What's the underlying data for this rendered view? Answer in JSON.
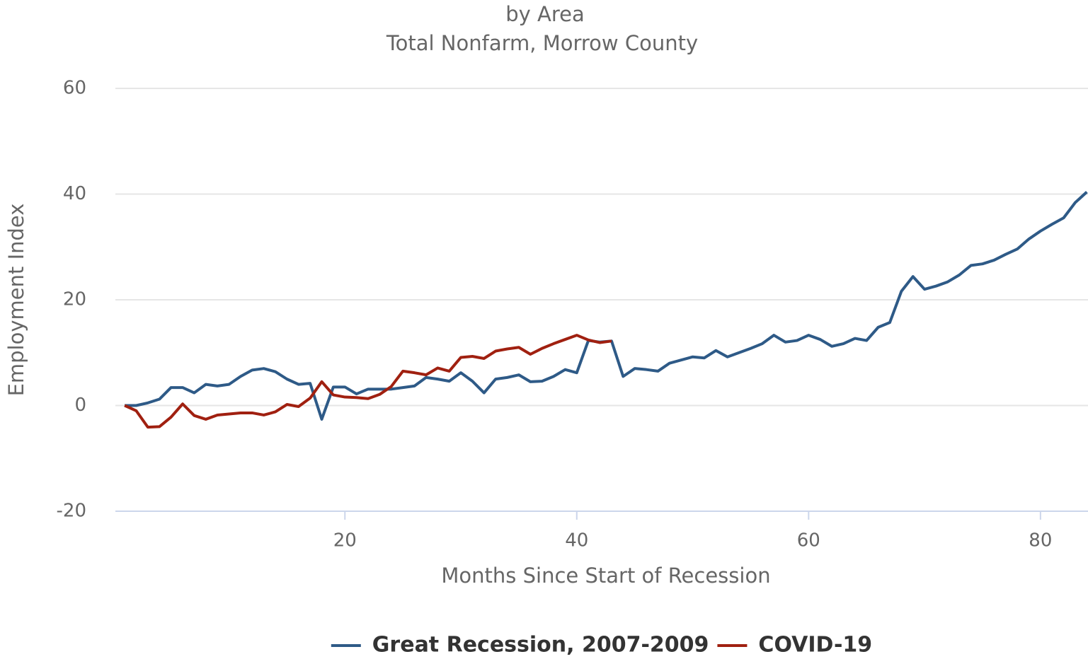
{
  "chart_data": {
    "type": "line",
    "title": "by Area",
    "subtitle": "Total Nonfarm, Morrow County",
    "x_label": "Months Since Start of Recession",
    "y_label": "Employment Index",
    "x": [
      1,
      2,
      3,
      4,
      5,
      6,
      7,
      8,
      9,
      10,
      11,
      12,
      13,
      14,
      15,
      16,
      17,
      18,
      19,
      20,
      21,
      22,
      23,
      24,
      25,
      26,
      27,
      28,
      29,
      30,
      31,
      32,
      33,
      34,
      35,
      36,
      37,
      38,
      39,
      40,
      41,
      42,
      43,
      44,
      45,
      46,
      47,
      48,
      49,
      50,
      51,
      52,
      53,
      54,
      55,
      56,
      57,
      58,
      59,
      60,
      61,
      62,
      63,
      64,
      65,
      66,
      67,
      68,
      69,
      70,
      71,
      72,
      73,
      74,
      75,
      76,
      77,
      78,
      79,
      80,
      81,
      82,
      83,
      84
    ],
    "series": [
      {
        "name": "Great Recession, 2007-2009",
        "color": "#2e5a87",
        "values": [
          0,
          0,
          0.5,
          1.2,
          3.4,
          3.4,
          2.4,
          4,
          3.7,
          4,
          5.5,
          6.7,
          7,
          6.4,
          5,
          4,
          4.2,
          -2.6,
          3.5,
          3.5,
          2.2,
          3.1,
          3.1,
          3.1,
          3.4,
          3.7,
          5.3,
          5,
          4.6,
          6.2,
          4.6,
          2.4,
          5,
          5.3,
          5.8,
          4.5,
          4.6,
          5.5,
          6.8,
          6.2,
          12.3,
          12,
          12.2,
          5.5,
          7,
          6.8,
          6.5,
          8,
          8.6,
          9.2,
          9,
          10.4,
          9.2,
          10,
          10.8,
          11.7,
          13.3,
          12,
          12.3,
          13.3,
          12.5,
          11.2,
          11.7,
          12.7,
          12.3,
          14.8,
          15.7,
          21.6,
          24.4,
          22,
          22.6,
          23.4,
          24.7,
          26.5,
          26.8,
          27.5,
          28.6,
          29.6,
          31.5,
          33,
          34.3,
          35.5,
          38.4,
          40.4
        ]
      },
      {
        "name": "COVID-19",
        "color": "#a02010",
        "values": [
          0,
          -1,
          -4.1,
          -4,
          -2.2,
          0.3,
          -1.9,
          -2.6,
          -1.8,
          -1.6,
          -1.4,
          -1.4,
          -1.8,
          -1.2,
          0.2,
          -0.2,
          1.4,
          4.5,
          2,
          1.6,
          1.5,
          1.3,
          2.1,
          3.6,
          6.5,
          6.2,
          5.8,
          7.1,
          6.5,
          9.1,
          9.3,
          8.9,
          10.3,
          10.7,
          11,
          9.7,
          10.8,
          11.7,
          12.5,
          13.3,
          12.4,
          11.9,
          12.2,
          null,
          null,
          null,
          null,
          null,
          null,
          null,
          null,
          null,
          null,
          null,
          null,
          null,
          null,
          null,
          null,
          null,
          null,
          null,
          null,
          null,
          null,
          null,
          null,
          null,
          null,
          null,
          null,
          null,
          null,
          null,
          null,
          null,
          null,
          null,
          null,
          null,
          null,
          null,
          null,
          null
        ]
      }
    ],
    "xlim": [
      0.2,
      84.1
    ],
    "xticks": [
      20,
      40,
      60,
      80
    ],
    "ylim": [
      -20,
      60
    ],
    "yticks": [
      -20,
      0,
      20,
      40,
      60
    ],
    "grid": true,
    "legend": "bottom"
  }
}
